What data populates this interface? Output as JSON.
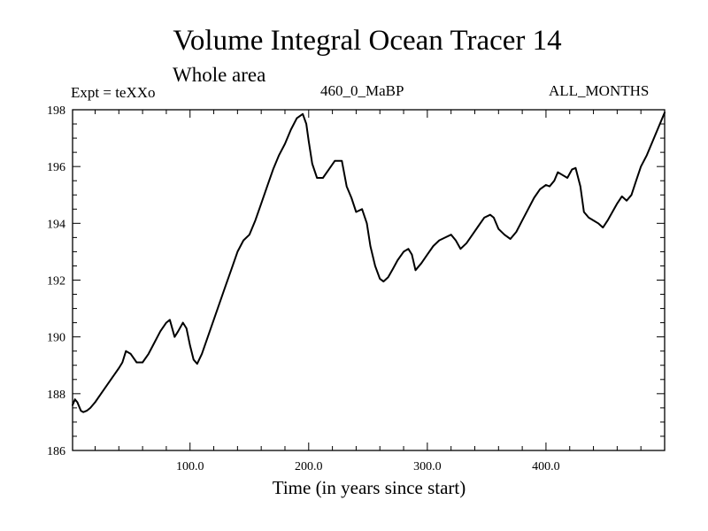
{
  "chart_data": {
    "type": "line",
    "title": "Volume Integral Ocean Tracer 14",
    "subtitle": "Whole area",
    "expt_label": "Expt = teXXo",
    "center_label": "460_0_MaBP",
    "right_label": "ALL_MONTHS",
    "xlabel": "Time (in years since start)",
    "ylabel": "",
    "xlim": [
      1,
      500
    ],
    "ylim": [
      186,
      198
    ],
    "x_major_ticks": [
      100,
      200,
      300,
      400
    ],
    "x_tick_labels": [
      "100.0",
      "200.0",
      "300.0",
      "400.0"
    ],
    "y_major_ticks": [
      186,
      188,
      190,
      192,
      194,
      196,
      198
    ],
    "y_tick_labels": [
      "186",
      "188",
      "190",
      "192",
      "194",
      "196",
      "198"
    ],
    "grid": false,
    "series": [
      {
        "name": "Volume Integral Ocean Tracer 14",
        "x": [
          1,
          3,
          5,
          8,
          10,
          13,
          16,
          20,
          25,
          30,
          35,
          40,
          43,
          46,
          50,
          55,
          60,
          65,
          70,
          75,
          80,
          83,
          87,
          90,
          94,
          97,
          100,
          103,
          106,
          110,
          115,
          120,
          125,
          130,
          135,
          140,
          145,
          150,
          155,
          160,
          165,
          170,
          175,
          180,
          185,
          190,
          195,
          198,
          200,
          203,
          207,
          212,
          217,
          222,
          228,
          232,
          236,
          240,
          245,
          249,
          252,
          256,
          260,
          263,
          267,
          271,
          275,
          280,
          284,
          287,
          290,
          295,
          300,
          305,
          310,
          315,
          320,
          324,
          328,
          333,
          338,
          343,
          348,
          353,
          356,
          360,
          365,
          370,
          375,
          380,
          385,
          390,
          395,
          400,
          403,
          407,
          410,
          414,
          418,
          422,
          425,
          429,
          432,
          436,
          440,
          444,
          448,
          452,
          456,
          460,
          464,
          468,
          472,
          476,
          480,
          485,
          490,
          495,
          500
        ],
        "values": [
          187.6,
          187.8,
          187.7,
          187.4,
          187.35,
          187.4,
          187.5,
          187.7,
          188.0,
          188.3,
          188.6,
          188.9,
          189.1,
          189.5,
          189.4,
          189.1,
          189.1,
          189.4,
          189.8,
          190.2,
          190.5,
          190.6,
          190.0,
          190.2,
          190.5,
          190.3,
          189.7,
          189.2,
          189.05,
          189.4,
          190.0,
          190.6,
          191.2,
          191.8,
          192.4,
          193.0,
          193.4,
          193.6,
          194.1,
          194.7,
          195.3,
          195.9,
          196.4,
          196.8,
          197.3,
          197.7,
          197.85,
          197.5,
          196.9,
          196.1,
          195.6,
          195.6,
          195.9,
          196.2,
          196.2,
          195.3,
          194.9,
          194.4,
          194.5,
          194.0,
          193.2,
          192.5,
          192.05,
          191.95,
          192.1,
          192.4,
          192.7,
          193.0,
          193.1,
          192.9,
          192.35,
          192.6,
          192.9,
          193.2,
          193.4,
          193.5,
          193.6,
          193.4,
          193.1,
          193.3,
          193.6,
          193.9,
          194.2,
          194.3,
          194.2,
          193.8,
          193.6,
          193.45,
          193.7,
          194.1,
          194.5,
          194.9,
          195.2,
          195.35,
          195.3,
          195.5,
          195.8,
          195.7,
          195.6,
          195.9,
          195.95,
          195.3,
          194.4,
          194.2,
          194.1,
          194.0,
          193.85,
          194.1,
          194.4,
          194.7,
          194.95,
          194.8,
          195.0,
          195.5,
          196.0,
          196.4,
          196.9,
          197.4,
          197.9
        ]
      }
    ]
  }
}
